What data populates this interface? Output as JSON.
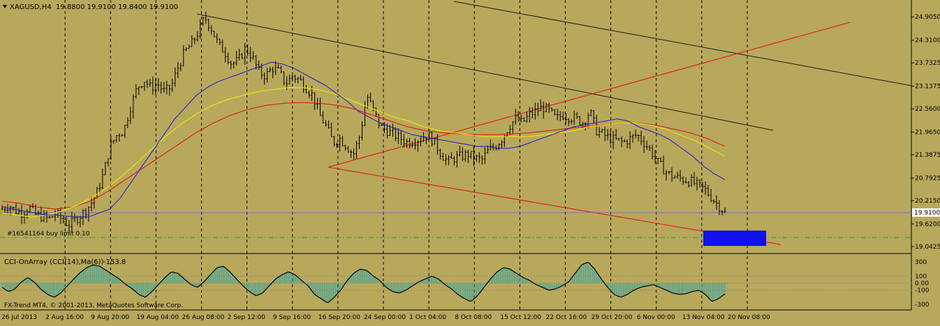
{
  "header": {
    "symbol_tf": "XAGUSD,H4",
    "ohlc": "19.8800 19.9100 19.8400 19.9100"
  },
  "order_label": "#16541164 buy limit 0.10",
  "indicator": {
    "title": "CCI-OnArray (CCI(14),Ma(6))",
    "value": "-153.8"
  },
  "copyright": "FX-Trend MT4, © 2001-2013, MetaQuotes Software Corp.",
  "current_price_label": "19.9100",
  "chart_data": [
    {
      "type": "line",
      "y_ticks": [
        "24.9050",
        "24.3100",
        "23.7325",
        "23.1375",
        "22.5600",
        "21.9650",
        "21.3875",
        "20.7925",
        "20.2150",
        "19.6200",
        "19.0425"
      ],
      "x_labels": [
        "26 Jul 2013",
        "2 Aug 16:00",
        "9 Aug 20:00",
        "19 Aug 04:00",
        "26 Aug 08:00",
        "2 Sep 12:00",
        "9 Sep 16:00",
        "16 Sep 20:00",
        "24 Sep 00:00",
        "1 Oct 04:00",
        "8 Oct 08:00",
        "15 Oct 12:00",
        "22 Oct 16:00",
        "29 Oct 20:00",
        "6 Nov 00:00",
        "13 Nov 04:00",
        "20 Nov 08:00"
      ],
      "ylim": [
        18.9,
        25.3
      ],
      "current_price": 19.91,
      "closes": [
        20.0,
        20.1,
        19.95,
        19.9,
        20.05,
        19.85,
        19.8,
        19.75,
        19.9,
        19.7,
        19.6,
        19.75,
        19.9,
        20.1,
        20.4,
        20.9,
        21.6,
        21.9,
        22.0,
        22.6,
        23.1,
        23.3,
        23.1,
        23.2,
        23.0,
        23.1,
        23.6,
        24.0,
        24.2,
        24.5,
        24.9,
        24.6,
        24.2,
        24.0,
        23.7,
        23.8,
        24.1,
        23.9,
        23.5,
        23.4,
        23.6,
        23.5,
        23.2,
        23.4,
        23.3,
        23.1,
        22.9,
        22.4,
        22.1,
        21.7,
        21.8,
        21.6,
        21.4,
        21.9,
        22.9,
        22.5,
        22.1,
        22.0,
        21.9,
        21.8,
        21.7,
        21.75,
        21.8,
        21.9,
        21.7,
        21.4,
        21.2,
        21.3,
        21.35,
        21.4,
        21.3,
        21.25,
        21.5,
        21.6,
        21.8,
        22.1,
        22.3,
        22.2,
        22.4,
        22.5,
        22.6,
        22.5,
        22.3,
        22.4,
        22.35,
        22.3,
        22.2,
        22.5,
        22.0,
        21.9,
        21.8,
        21.75,
        21.7,
        21.8,
        21.9,
        21.7,
        21.5,
        21.2,
        21.0,
        20.85,
        20.8,
        20.75,
        20.7,
        20.6,
        20.5,
        20.3,
        20.1,
        19.91
      ],
      "ma_fast": [
        20.05,
        20.0,
        19.95,
        19.9,
        19.85,
        19.85,
        19.82,
        19.8,
        19.8,
        19.9,
        20.0,
        20.3,
        20.7,
        21.1,
        21.5,
        21.9,
        22.3,
        22.6,
        22.9,
        23.1,
        23.25,
        23.35,
        23.45,
        23.55,
        23.65,
        23.75,
        23.7,
        23.6,
        23.45,
        23.3,
        23.15,
        22.95,
        22.75,
        22.5,
        22.35,
        22.2,
        22.1,
        22.0,
        21.9,
        21.85,
        21.8,
        21.75,
        21.7,
        21.65,
        21.6,
        21.6,
        21.55,
        21.55,
        21.6,
        21.7,
        21.8,
        21.9,
        22.0,
        22.1,
        22.15,
        22.2,
        22.25,
        22.3,
        22.25,
        22.1,
        22.0,
        21.9,
        21.75,
        21.55,
        21.35,
        21.1,
        20.9,
        20.75
      ],
      "ma_mid": [
        19.9,
        19.85,
        19.8,
        19.85,
        19.95,
        20.1,
        20.3,
        20.55,
        20.85,
        21.2,
        21.55,
        21.9,
        22.2,
        22.45,
        22.65,
        22.8,
        22.9,
        23.0,
        23.05,
        23.1,
        23.1,
        23.05,
        22.95,
        22.8,
        22.65,
        22.5,
        22.35,
        22.25,
        22.1,
        22.0,
        21.95,
        21.9,
        21.85,
        21.85,
        21.85,
        21.85,
        21.9,
        21.95,
        22.0,
        22.1,
        22.15,
        22.2,
        22.2,
        22.15,
        22.05,
        21.9,
        21.75,
        21.55,
        21.35
      ],
      "ma_slow": [
        20.2,
        20.15,
        20.05,
        20.0,
        20.05,
        20.2,
        20.45,
        20.75,
        21.05,
        21.35,
        21.65,
        21.95,
        22.2,
        22.4,
        22.55,
        22.65,
        22.7,
        22.72,
        22.7,
        22.65,
        22.55,
        22.4,
        22.25,
        22.1,
        22.0,
        21.95,
        21.92,
        21.9,
        21.9,
        21.92,
        21.95,
        22.0,
        22.05,
        22.1,
        22.15,
        22.2,
        22.2,
        22.15,
        22.05,
        21.95,
        21.8,
        21.6
      ]
    },
    {
      "type": "area",
      "ylim": [
        -370,
        380
      ],
      "y_ticks": [
        "300",
        "100",
        "0.00",
        "-100",
        "-300"
      ],
      "levels": [
        100,
        0,
        -100
      ],
      "values": [
        -60,
        -120,
        -80,
        20,
        80,
        10,
        -90,
        -160,
        -200,
        -140,
        -40,
        60,
        150,
        220,
        260,
        240,
        180,
        120,
        60,
        -20,
        -80,
        -160,
        -200,
        -120,
        -20,
        80,
        160,
        140,
        60,
        -20,
        -60,
        20,
        120,
        220,
        240,
        160,
        60,
        -40,
        -120,
        -180,
        -140,
        -40,
        60,
        120,
        160,
        120,
        40,
        -40,
        -160,
        -220,
        -280,
        -200,
        -100,
        40,
        140,
        200,
        180,
        100,
        40,
        -60,
        -120,
        -140,
        -100,
        -40,
        20,
        60,
        100,
        60,
        -20,
        -80,
        -160,
        -220,
        -260,
        -180,
        -60,
        60,
        160,
        220,
        200,
        140,
        80,
        40,
        -20,
        -60,
        -100,
        -80,
        -40,
        20,
        140,
        260,
        300,
        200,
        60,
        -60,
        -160,
        -200,
        -160,
        -100,
        -60,
        -40,
        -20,
        -60,
        -100,
        -140,
        -160,
        -150,
        -120,
        -100,
        -160,
        -260,
        -220,
        -154
      ]
    }
  ]
}
